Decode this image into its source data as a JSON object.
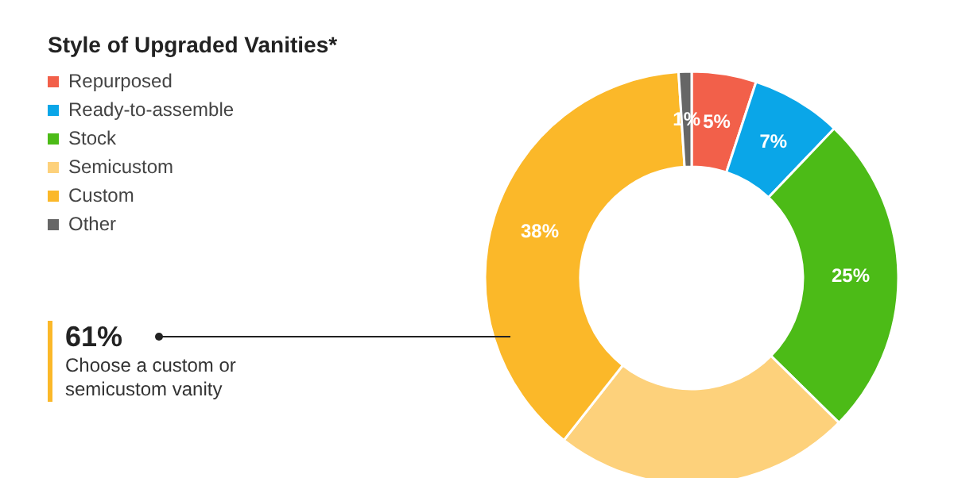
{
  "chart_data": {
    "type": "donut",
    "title": "Style of Upgraded Vanities*",
    "categories": [
      "Repurposed",
      "Ready-to-assemble",
      "Stock",
      "Semicustom",
      "Custom",
      "Other"
    ],
    "values": [
      5,
      7,
      25,
      23,
      38,
      1
    ],
    "value_labels": [
      "5%",
      "7%",
      "25%",
      null,
      "38%",
      "1%"
    ],
    "colors": [
      "#f2604a",
      "#0aa6e8",
      "#4cbb17",
      "#fdd17b",
      "#fbb829",
      "#666666"
    ],
    "legend": "top left",
    "annotations": [
      "61%",
      "Choose a custom or semicustom vanity"
    ]
  }
}
